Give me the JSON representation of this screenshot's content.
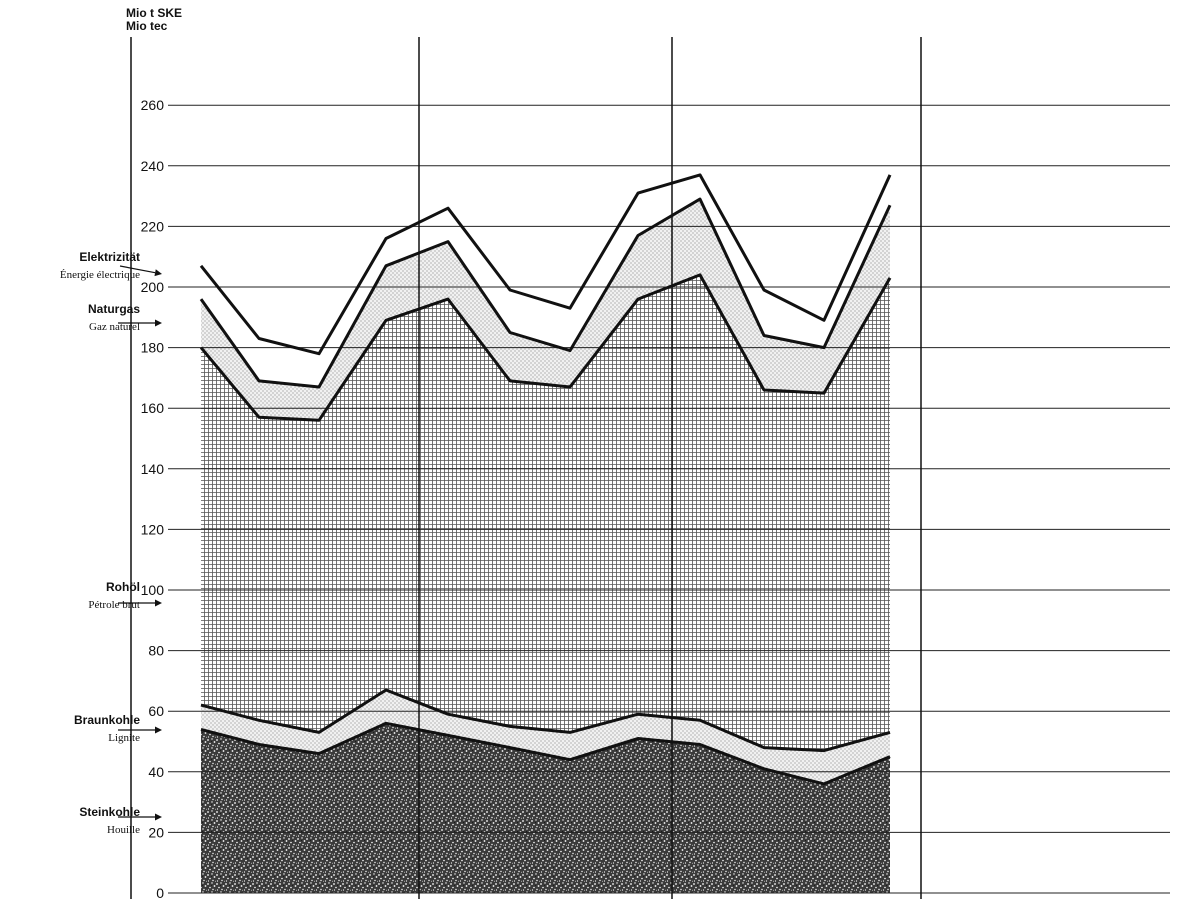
{
  "chart_data": {
    "type": "area",
    "stacked": true,
    "unit_labels": [
      "Mio t SKE",
      "Mio tec"
    ],
    "y_ticks": [
      0,
      20,
      40,
      60,
      80,
      100,
      120,
      140,
      160,
      180,
      200,
      220,
      240,
      260
    ],
    "ylim": [
      0,
      280
    ],
    "grid": true,
    "series": [
      {
        "name": "Steinkohle",
        "name_fr": "Houille",
        "pattern": "dark-stipple",
        "cumulative": [
          54,
          49,
          46,
          56,
          52,
          48,
          44,
          51,
          49,
          41,
          36,
          45
        ]
      },
      {
        "name": "Braunkohle",
        "name_fr": "Lignite",
        "pattern": "light-dots",
        "cumulative": [
          62,
          57,
          53,
          67,
          59,
          55,
          53,
          59,
          57,
          48,
          47,
          53
        ]
      },
      {
        "name": "Rohöl",
        "name_fr": "Pétrole brut",
        "pattern": "crosshatch",
        "cumulative": [
          180,
          157,
          156,
          189,
          196,
          169,
          167,
          196,
          204,
          166,
          165,
          203
        ]
      },
      {
        "name": "Naturgas",
        "name_fr": "Gaz naturel",
        "pattern": "light-dots",
        "cumulative": [
          196,
          169,
          167,
          207,
          215,
          185,
          179,
          217,
          229,
          184,
          180,
          227
        ]
      },
      {
        "name": "Elektrizität",
        "name_fr": "Énergie électrique",
        "pattern": "white",
        "cumulative": [
          207,
          183,
          178,
          216,
          226,
          199,
          193,
          231,
          237,
          199,
          189,
          237
        ]
      }
    ]
  }
}
